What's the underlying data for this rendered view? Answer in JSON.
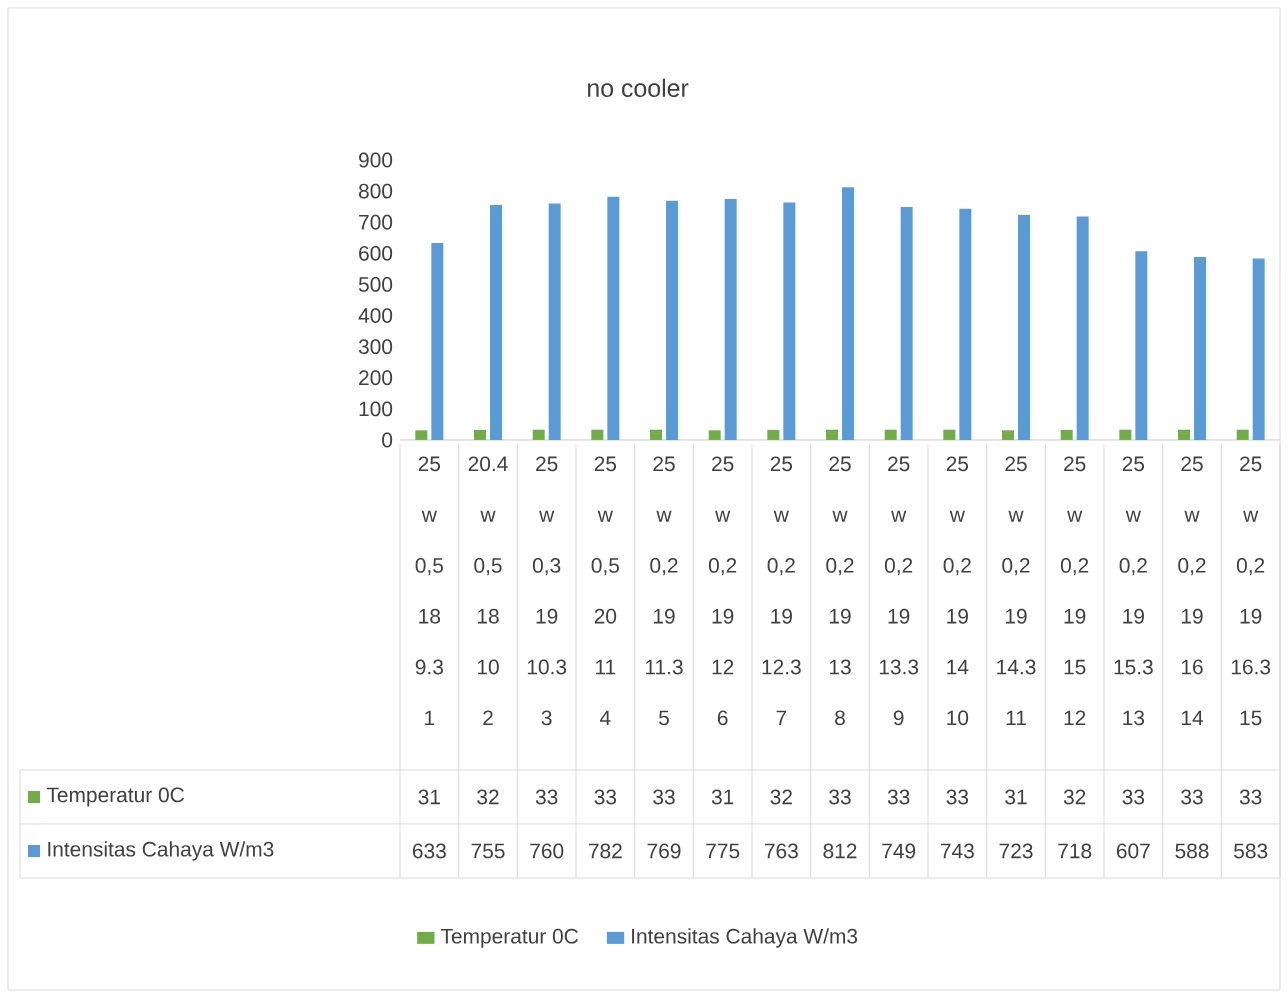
{
  "chart_data": {
    "type": "bar",
    "title": "no cooler",
    "categories": [
      "25 w 0,5 18 9.3 1",
      "20.4 w 0,5 18 10 2",
      "25 w 0,3 19 10.3 3",
      "25 w 0,5 20 11 4",
      "25 w 0,2 19 11.3 5",
      "25 w 0,2 19 12 6",
      "25 w 0,2 19 12.3 7",
      "25 w 0,2 19 13 8",
      "25 w 0,2 19 13.3 9",
      "25 w 0,2 19 14 10",
      "25 w 0,2 19 14.3 11",
      "25 w 0,2 19 15 12",
      "25 w 0,2 19 15.3 13",
      "25 w 0,2 19 16 14",
      "25 w 0,2 19 16.3 15"
    ],
    "series": [
      {
        "name": "Temperatur 0C",
        "color": "#70ad47",
        "values": [
          31,
          32,
          33,
          33,
          33,
          31,
          32,
          33,
          33,
          33,
          31,
          32,
          33,
          33,
          33
        ]
      },
      {
        "name": "Intensitas Cahaya W/m3",
        "color": "#5b9bd5",
        "values": [
          633,
          755,
          760,
          782,
          769,
          775,
          763,
          812,
          749,
          743,
          723,
          718,
          607,
          588,
          583
        ]
      }
    ],
    "ylim": [
      0,
      900
    ],
    "yticks": [
      0,
      100,
      200,
      300,
      400,
      500,
      600,
      700,
      800,
      900
    ],
    "data_labels": true,
    "legend": "bottom"
  }
}
